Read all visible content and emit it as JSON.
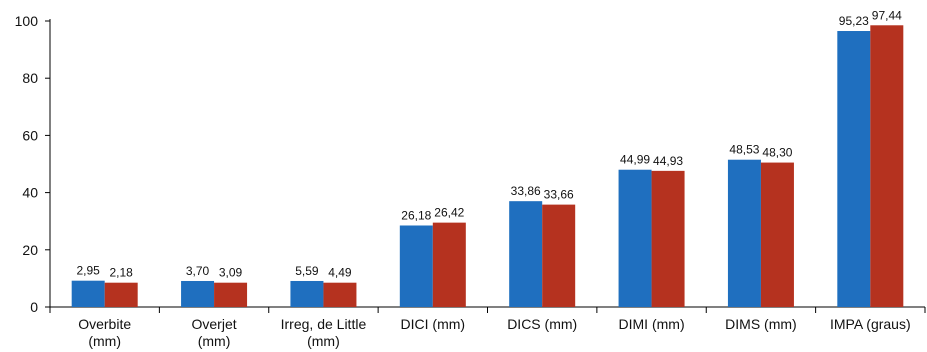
{
  "chart_data": {
    "type": "bar",
    "categories": [
      [
        "Overbite",
        "(mm)"
      ],
      [
        "Overjet",
        "(mm)"
      ],
      [
        "Irreg, de Little",
        "(mm)"
      ],
      [
        "DICI (mm)"
      ],
      [
        "DICS (mm)"
      ],
      [
        "DIMI (mm)"
      ],
      [
        "DIMS (mm)"
      ],
      [
        "IMPA (graus)"
      ]
    ],
    "series": [
      {
        "color": "#1f6fbf",
        "values": [
          9.2,
          9.1,
          9.1,
          28.5,
          37.0,
          48.0,
          51.5,
          96.5
        ],
        "labels": [
          "2,95",
          "3,70",
          "5,59",
          "26,18",
          "33,86",
          "44,99",
          "48,53",
          "95,23"
        ]
      },
      {
        "color": "#b5321f",
        "values": [
          8.5,
          8.5,
          8.5,
          29.5,
          35.8,
          47.6,
          50.5,
          98.5
        ],
        "labels": [
          "2,18",
          "3,09",
          "4,49",
          "26,42",
          "33,66",
          "44,93",
          "48,30",
          "97,44"
        ]
      }
    ],
    "ylim": [
      0,
      100
    ],
    "yticks": [
      "0",
      "20",
      "40",
      "60",
      "80",
      "100"
    ],
    "grid": false,
    "legend": "none"
  }
}
